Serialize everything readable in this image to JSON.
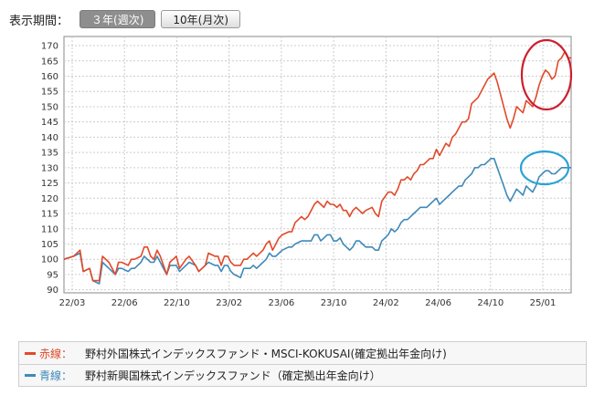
{
  "period_selector": {
    "label": "表示期間：",
    "options": [
      "３年(週次)",
      "10年(月次)"
    ],
    "selected": "３年(週次)"
  },
  "legend": {
    "items": [
      {
        "key": "赤線：",
        "name": "野村外国株式インデックスファンド・MSCI-KOKUSAI(確定拠出年金向け)",
        "color": "#e04a2a"
      },
      {
        "key": "青線：",
        "name": "野村新興国株式インデックスファンド（確定拠出年金向け）",
        "color": "#3f89b8"
      }
    ]
  },
  "colors": {
    "red_line": "#e04a2a",
    "blue_line": "#3f89b8",
    "annotation_red": "#cc1f2e",
    "annotation_blue": "#29a3d6",
    "grid": "#cccccc"
  },
  "chart_data": {
    "type": "line",
    "x_ticks": [
      "22/03",
      "22/06",
      "22/10",
      "23/02",
      "23/06",
      "23/10",
      "24/02",
      "24/06",
      "24/10",
      "25/01"
    ],
    "y_ticks": [
      90,
      95,
      100,
      105,
      110,
      115,
      120,
      125,
      130,
      135,
      140,
      145,
      150,
      155,
      160,
      165,
      170
    ],
    "ylim": [
      89,
      173
    ],
    "xlim": [
      0,
      158
    ],
    "grid": true,
    "annotations": [
      "red circle around recent drop of red line (x≈152–158)",
      "blue circle around recent blue line (x≈150–158)"
    ],
    "series": [
      {
        "color": "red",
        "points": [
          [
            0,
            100
          ],
          [
            3,
            101
          ],
          [
            5,
            103
          ],
          [
            6,
            96
          ],
          [
            8,
            97
          ],
          [
            9,
            93
          ],
          [
            11,
            93
          ],
          [
            12,
            101
          ],
          [
            14,
            99
          ],
          [
            16,
            95
          ],
          [
            17,
            99
          ],
          [
            18,
            99
          ],
          [
            20,
            98
          ],
          [
            21,
            100
          ],
          [
            22,
            100
          ],
          [
            24,
            101
          ],
          [
            25,
            104
          ],
          [
            26,
            104
          ],
          [
            27,
            101
          ],
          [
            28,
            100
          ],
          [
            29,
            103
          ],
          [
            30,
            101
          ],
          [
            31,
            98
          ],
          [
            32,
            95
          ],
          [
            33,
            99
          ],
          [
            34,
            100
          ],
          [
            35,
            101
          ],
          [
            36,
            97
          ],
          [
            38,
            100
          ],
          [
            39,
            101
          ],
          [
            41,
            98
          ],
          [
            42,
            96
          ],
          [
            44,
            98
          ],
          [
            45,
            102
          ],
          [
            47,
            101
          ],
          [
            48,
            101
          ],
          [
            49,
            98
          ],
          [
            50,
            101
          ],
          [
            51,
            101
          ],
          [
            52,
            99
          ],
          [
            53,
            98
          ],
          [
            55,
            98
          ],
          [
            56,
            100
          ],
          [
            57,
            100
          ],
          [
            58,
            101
          ],
          [
            59,
            102
          ],
          [
            60,
            101
          ],
          [
            62,
            103
          ],
          [
            63,
            105
          ],
          [
            64,
            106
          ],
          [
            65,
            103
          ],
          [
            66,
            105
          ],
          [
            67,
            107
          ],
          [
            68,
            108
          ],
          [
            70,
            109
          ],
          [
            71,
            109
          ],
          [
            72,
            112
          ],
          [
            74,
            114
          ],
          [
            75,
            113
          ],
          [
            76,
            114
          ],
          [
            77,
            116
          ],
          [
            78,
            118
          ],
          [
            79,
            119
          ],
          [
            80,
            118
          ],
          [
            81,
            117
          ],
          [
            82,
            119
          ],
          [
            83,
            118
          ],
          [
            84,
            118
          ],
          [
            85,
            117
          ],
          [
            86,
            118
          ],
          [
            87,
            116
          ],
          [
            88,
            116
          ],
          [
            89,
            114
          ],
          [
            90,
            116
          ],
          [
            91,
            117
          ],
          [
            92,
            116
          ],
          [
            93,
            115
          ],
          [
            94,
            116
          ],
          [
            96,
            117
          ],
          [
            97,
            115
          ],
          [
            98,
            114
          ],
          [
            99,
            119
          ],
          [
            101,
            122
          ],
          [
            102,
            122
          ],
          [
            103,
            121
          ],
          [
            104,
            123
          ],
          [
            105,
            126
          ],
          [
            106,
            126
          ],
          [
            107,
            127
          ],
          [
            108,
            126
          ],
          [
            109,
            128
          ],
          [
            110,
            129
          ],
          [
            111,
            131
          ],
          [
            112,
            131
          ],
          [
            113,
            132
          ],
          [
            114,
            133
          ],
          [
            115,
            133
          ],
          [
            116,
            136
          ],
          [
            117,
            134
          ],
          [
            118,
            136
          ],
          [
            119,
            138
          ],
          [
            120,
            137
          ],
          [
            121,
            140
          ],
          [
            122,
            141
          ],
          [
            123,
            143
          ],
          [
            124,
            145
          ],
          [
            125,
            145
          ],
          [
            126,
            146
          ],
          [
            127,
            151
          ],
          [
            128,
            152
          ],
          [
            129,
            153
          ],
          [
            130,
            155
          ],
          [
            131,
            157
          ],
          [
            132,
            159
          ],
          [
            133,
            160
          ],
          [
            134,
            161
          ],
          [
            135,
            158
          ],
          [
            136,
            154
          ],
          [
            137,
            150
          ],
          [
            138,
            146
          ],
          [
            139,
            143
          ],
          [
            140,
            146
          ],
          [
            141,
            150
          ],
          [
            142,
            149
          ],
          [
            143,
            148
          ],
          [
            144,
            152
          ],
          [
            145,
            151
          ],
          [
            146,
            150
          ],
          [
            147,
            153
          ],
          [
            148,
            157
          ],
          [
            149,
            160
          ],
          [
            150,
            162
          ],
          [
            151,
            161
          ],
          [
            152,
            159
          ],
          [
            153,
            160
          ],
          [
            154,
            165
          ],
          [
            155,
            166
          ],
          [
            156,
            168
          ],
          [
            157,
            166
          ],
          [
            158,
            166
          ]
        ]
      },
      {
        "color": "blue",
        "points": [
          [
            0,
            100
          ],
          [
            3,
            101
          ],
          [
            5,
            102
          ],
          [
            6,
            96
          ],
          [
            8,
            97
          ],
          [
            9,
            93
          ],
          [
            11,
            92
          ],
          [
            12,
            99
          ],
          [
            14,
            97
          ],
          [
            16,
            95
          ],
          [
            17,
            97
          ],
          [
            18,
            97
          ],
          [
            20,
            96
          ],
          [
            21,
            97
          ],
          [
            22,
            97
          ],
          [
            24,
            99
          ],
          [
            25,
            101
          ],
          [
            26,
            100
          ],
          [
            27,
            99
          ],
          [
            28,
            99
          ],
          [
            29,
            101
          ],
          [
            30,
            99
          ],
          [
            31,
            97
          ],
          [
            32,
            95
          ],
          [
            33,
            98
          ],
          [
            34,
            98
          ],
          [
            35,
            98
          ],
          [
            36,
            96
          ],
          [
            38,
            98
          ],
          [
            39,
            99
          ],
          [
            41,
            98
          ],
          [
            42,
            96
          ],
          [
            44,
            98
          ],
          [
            45,
            99
          ],
          [
            47,
            98
          ],
          [
            48,
            98
          ],
          [
            49,
            96
          ],
          [
            50,
            98
          ],
          [
            51,
            98
          ],
          [
            52,
            96
          ],
          [
            53,
            95
          ],
          [
            55,
            94
          ],
          [
            56,
            97
          ],
          [
            57,
            97
          ],
          [
            58,
            97
          ],
          [
            59,
            98
          ],
          [
            60,
            97
          ],
          [
            62,
            99
          ],
          [
            63,
            100
          ],
          [
            64,
            102
          ],
          [
            65,
            101
          ],
          [
            66,
            101
          ],
          [
            67,
            102
          ],
          [
            68,
            103
          ],
          [
            70,
            104
          ],
          [
            71,
            104
          ],
          [
            72,
            105
          ],
          [
            74,
            106
          ],
          [
            75,
            106
          ],
          [
            76,
            106
          ],
          [
            77,
            106
          ],
          [
            78,
            108
          ],
          [
            79,
            108
          ],
          [
            80,
            106
          ],
          [
            81,
            107
          ],
          [
            82,
            108
          ],
          [
            83,
            108
          ],
          [
            84,
            106
          ],
          [
            85,
            106
          ],
          [
            86,
            107
          ],
          [
            87,
            105
          ],
          [
            88,
            104
          ],
          [
            89,
            103
          ],
          [
            90,
            104
          ],
          [
            91,
            106
          ],
          [
            92,
            106
          ],
          [
            93,
            105
          ],
          [
            94,
            104
          ],
          [
            96,
            104
          ],
          [
            97,
            103
          ],
          [
            98,
            103
          ],
          [
            99,
            106
          ],
          [
            101,
            108
          ],
          [
            102,
            110
          ],
          [
            103,
            109
          ],
          [
            104,
            110
          ],
          [
            105,
            112
          ],
          [
            106,
            113
          ],
          [
            107,
            113
          ],
          [
            108,
            114
          ],
          [
            109,
            115
          ],
          [
            110,
            116
          ],
          [
            111,
            117
          ],
          [
            112,
            117
          ],
          [
            113,
            117
          ],
          [
            114,
            118
          ],
          [
            115,
            119
          ],
          [
            116,
            120
          ],
          [
            117,
            118
          ],
          [
            118,
            119
          ],
          [
            119,
            120
          ],
          [
            120,
            121
          ],
          [
            121,
            122
          ],
          [
            122,
            123
          ],
          [
            123,
            124
          ],
          [
            124,
            124
          ],
          [
            125,
            126
          ],
          [
            126,
            127
          ],
          [
            127,
            128
          ],
          [
            128,
            130
          ],
          [
            129,
            130
          ],
          [
            130,
            131
          ],
          [
            131,
            131
          ],
          [
            132,
            132
          ],
          [
            133,
            133
          ],
          [
            134,
            133
          ],
          [
            135,
            130
          ],
          [
            136,
            127
          ],
          [
            137,
            124
          ],
          [
            138,
            121
          ],
          [
            139,
            119
          ],
          [
            140,
            121
          ],
          [
            141,
            123
          ],
          [
            142,
            122
          ],
          [
            143,
            121
          ],
          [
            144,
            124
          ],
          [
            145,
            123
          ],
          [
            146,
            122
          ],
          [
            147,
            124
          ],
          [
            148,
            127
          ],
          [
            149,
            128
          ],
          [
            150,
            129
          ],
          [
            151,
            129
          ],
          [
            152,
            128
          ],
          [
            153,
            128
          ],
          [
            154,
            129
          ],
          [
            155,
            130
          ],
          [
            156,
            130
          ],
          [
            157,
            130
          ],
          [
            158,
            130
          ]
        ]
      }
    ]
  }
}
